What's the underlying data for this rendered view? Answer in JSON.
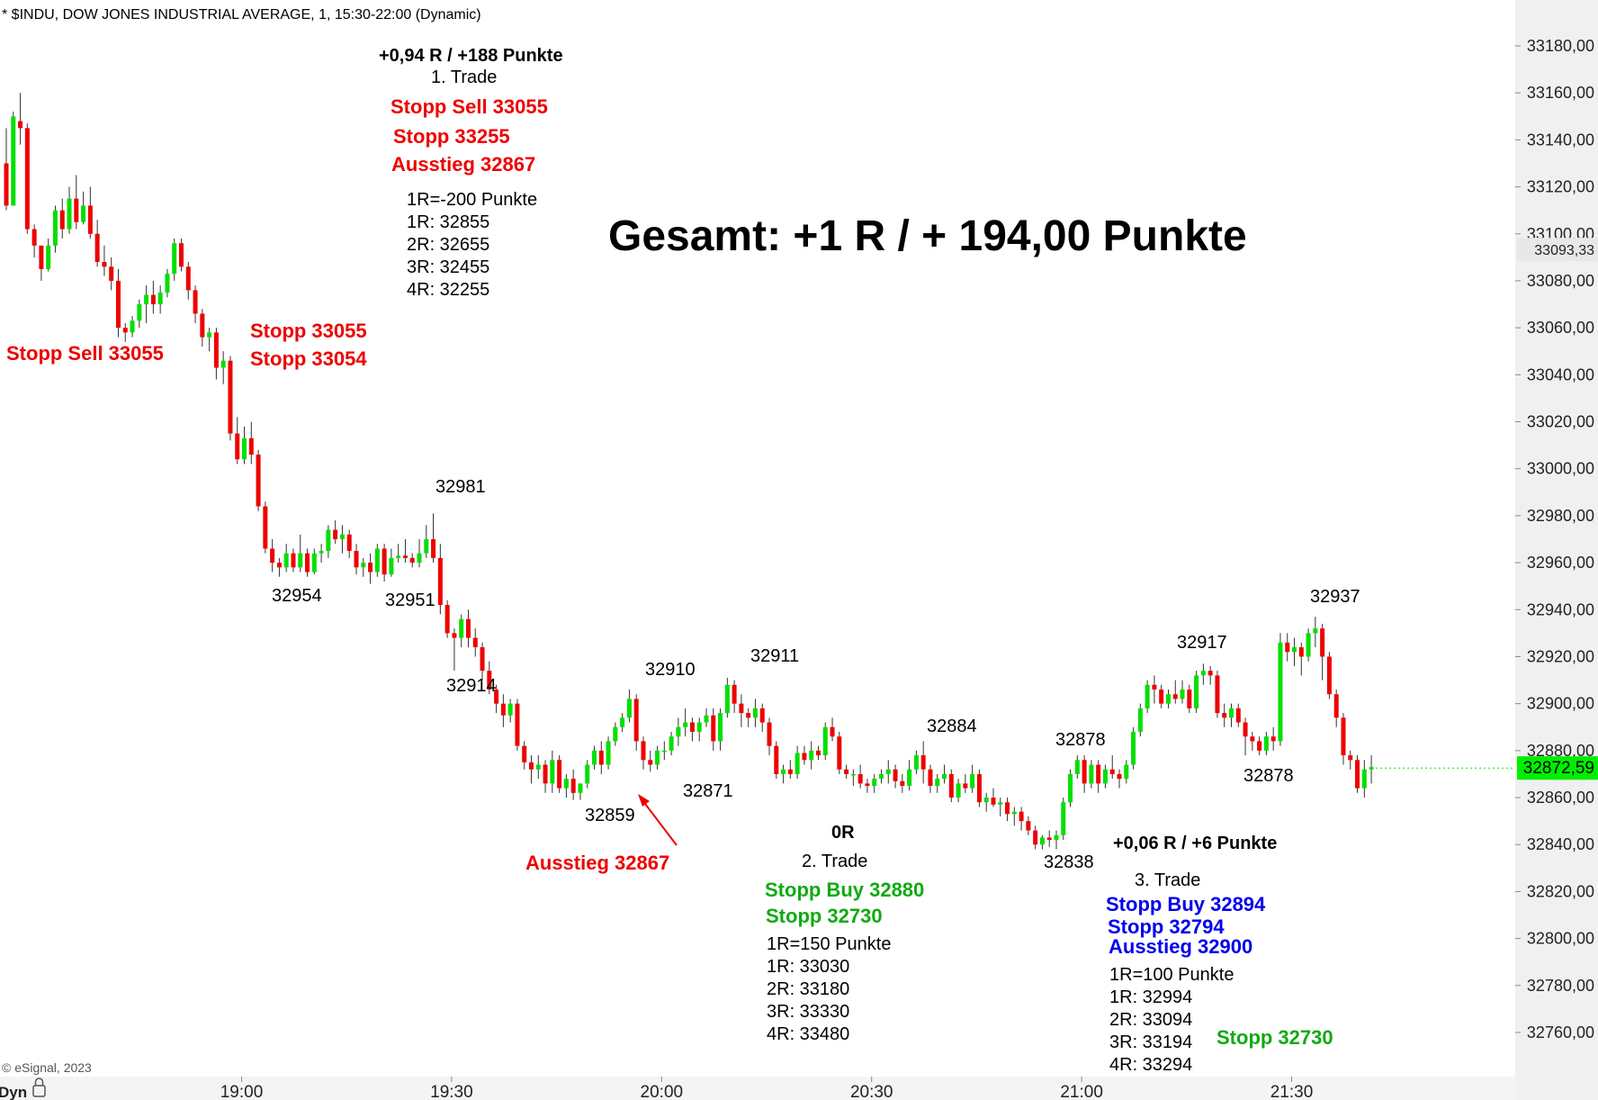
{
  "header": {
    "title": "* $INDU, DOW JONES INDUSTRIAL AVERAGE, 1, 15:30-22:00 (Dynamic)",
    "copyright": "© eSignal, 2023",
    "mode_label": "Dyn"
  },
  "chart_data": {
    "type": "candlestick",
    "symbol": "$INDU",
    "name": "DOW JONES INDUSTRIAL AVERAGE",
    "interval": "1",
    "session": "15:30-22:00",
    "ylim": [
      32745,
      33195
    ],
    "y_ticks": [
      "33180,00",
      "33160,00",
      "33140,00",
      "33120,00",
      "33100,00",
      "33080,00",
      "33060,00",
      "33040,00",
      "33020,00",
      "33000,00",
      "32980,00",
      "32960,00",
      "32940,00",
      "32920,00",
      "32900,00",
      "32880,00",
      "32860,00",
      "32840,00",
      "32820,00",
      "32800,00",
      "32780,00",
      "32760,00"
    ],
    "y_tick_values": [
      33180,
      33160,
      33140,
      33120,
      33100,
      33080,
      33060,
      33040,
      33020,
      33000,
      32980,
      32960,
      32940,
      32920,
      32900,
      32880,
      32860,
      32840,
      32820,
      32800,
      32780,
      32760
    ],
    "x_ticks": [
      "19:00",
      "19:30",
      "20:00",
      "20:30",
      "21:00",
      "21:30"
    ],
    "x_tick_minutes": [
      1140,
      1170,
      1200,
      1230,
      1260,
      1290
    ],
    "x_start_minute": 1106,
    "price_markers": [
      {
        "label": "33093,33",
        "value": 33093.33,
        "color": "#e8e8e8",
        "text_color": "#222222"
      },
      {
        "label": "32872,59",
        "value": 32872.59,
        "color": "#00ee00",
        "text_color": "#000000"
      }
    ],
    "candles": [
      [
        33130,
        33145,
        33110,
        33112
      ],
      [
        33112,
        33152,
        33112,
        33150
      ],
      [
        33148,
        33160,
        33138,
        33145
      ],
      [
        33145,
        33147,
        33100,
        33102
      ],
      [
        33102,
        33104,
        33090,
        33095
      ],
      [
        33095,
        33095,
        33080,
        33085
      ],
      [
        33085,
        33098,
        33084,
        33095
      ],
      [
        33095,
        33112,
        33092,
        33110
      ],
      [
        33110,
        33115,
        33098,
        33102
      ],
      [
        33102,
        33120,
        33100,
        33115
      ],
      [
        33115,
        33125,
        33102,
        33105
      ],
      [
        33105,
        33118,
        33104,
        33112
      ],
      [
        33112,
        33120,
        33098,
        33100
      ],
      [
        33100,
        33106,
        33086,
        33088
      ],
      [
        33088,
        33095,
        33082,
        33086
      ],
      [
        33086,
        33090,
        33076,
        33080
      ],
      [
        33080,
        33085,
        33056,
        33060
      ],
      [
        33060,
        33062,
        33054,
        33058
      ],
      [
        33058,
        33065,
        33056,
        33063
      ],
      [
        33063,
        33072,
        33060,
        33070
      ],
      [
        33070,
        33078,
        33062,
        33074
      ],
      [
        33074,
        33080,
        33066,
        33070
      ],
      [
        33070,
        33078,
        33066,
        33075
      ],
      [
        33075,
        33085,
        33073,
        33083
      ],
      [
        33083,
        33098,
        33080,
        33096
      ],
      [
        33096,
        33098,
        33084,
        33086
      ],
      [
        33086,
        33088,
        33072,
        33076
      ],
      [
        33076,
        33078,
        33062,
        33066
      ],
      [
        33066,
        33068,
        33052,
        33056
      ],
      [
        33056,
        33060,
        33050,
        33058
      ],
      [
        33058,
        33060,
        33038,
        33043
      ],
      [
        33043,
        33050,
        33036,
        33046
      ],
      [
        33046,
        33048,
        33012,
        33015
      ],
      [
        33015,
        33022,
        33002,
        33004
      ],
      [
        33004,
        33018,
        33002,
        33013
      ],
      [
        33013,
        33020,
        33002,
        33006
      ],
      [
        33006,
        33008,
        32982,
        32984
      ],
      [
        32984,
        32986,
        32964,
        32966
      ],
      [
        32966,
        32970,
        32956,
        32960
      ],
      [
        32960,
        32962,
        32954,
        32958
      ],
      [
        32958,
        32968,
        32956,
        32964
      ],
      [
        32964,
        32966,
        32956,
        32958
      ],
      [
        32958,
        32972,
        32956,
        32964
      ],
      [
        32964,
        32966,
        32954,
        32956
      ],
      [
        32956,
        32966,
        32955,
        32964
      ],
      [
        32964,
        32968,
        32960,
        32965
      ],
      [
        32965,
        32976,
        32962,
        32974
      ],
      [
        32974,
        32978,
        32968,
        32970
      ],
      [
        32970,
        32976,
        32964,
        32972
      ],
      [
        32972,
        32974,
        32962,
        32965
      ],
      [
        32965,
        32968,
        32955,
        32958
      ],
      [
        32958,
        32962,
        32954,
        32960
      ],
      [
        32960,
        32964,
        32951,
        32956
      ],
      [
        32956,
        32968,
        32954,
        32966
      ],
      [
        32966,
        32968,
        32952,
        32955
      ],
      [
        32955,
        32966,
        32954,
        32962
      ],
      [
        32962,
        32968,
        32960,
        32963
      ],
      [
        32963,
        32970,
        32960,
        32962
      ],
      [
        32962,
        32964,
        32958,
        32960
      ],
      [
        32960,
        32970,
        32958,
        32964
      ],
      [
        32964,
        32976,
        32962,
        32970
      ],
      [
        32970,
        32981,
        32960,
        32962
      ],
      [
        32962,
        32968,
        32938,
        32942
      ],
      [
        32942,
        32944,
        32928,
        32930
      ],
      [
        32930,
        32932,
        32914,
        32928
      ],
      [
        32928,
        32938,
        32924,
        32936
      ],
      [
        32936,
        32940,
        32924,
        32928
      ],
      [
        32928,
        32932,
        32920,
        32924
      ],
      [
        32924,
        32926,
        32910,
        32914
      ],
      [
        32914,
        32918,
        32904,
        32906
      ],
      [
        32906,
        32908,
        32896,
        32900
      ],
      [
        32900,
        32904,
        32890,
        32895
      ],
      [
        32895,
        32902,
        32892,
        32900
      ],
      [
        32900,
        32902,
        32880,
        32882
      ],
      [
        32882,
        32884,
        32872,
        32875
      ],
      [
        32875,
        32878,
        32866,
        32872
      ],
      [
        32872,
        32878,
        32868,
        32874
      ],
      [
        32874,
        32876,
        32862,
        32866
      ],
      [
        32866,
        32880,
        32862,
        32876
      ],
      [
        32876,
        32878,
        32862,
        32864
      ],
      [
        32864,
        32870,
        32860,
        32868
      ],
      [
        32868,
        32872,
        32859,
        32862
      ],
      [
        32862,
        32866,
        32859,
        32866
      ],
      [
        32866,
        32876,
        32864,
        32874
      ],
      [
        32874,
        32882,
        32872,
        32880
      ],
      [
        32880,
        32884,
        32870,
        32874
      ],
      [
        32874,
        32886,
        32872,
        32884
      ],
      [
        32884,
        32892,
        32882,
        32890
      ],
      [
        32890,
        32896,
        32888,
        32894
      ],
      [
        32894,
        32906,
        32892,
        32902
      ],
      [
        32902,
        32904,
        32880,
        32884
      ],
      [
        32884,
        32886,
        32872,
        32876
      ],
      [
        32876,
        32880,
        32871,
        32874
      ],
      [
        32874,
        32882,
        32872,
        32880
      ],
      [
        32880,
        32884,
        32876,
        32880
      ],
      [
        32880,
        32888,
        32878,
        32886
      ],
      [
        32886,
        32894,
        32882,
        32890
      ],
      [
        32890,
        32898,
        32886,
        32892
      ],
      [
        32892,
        32894,
        32884,
        32888
      ],
      [
        32888,
        32894,
        32884,
        32892
      ],
      [
        32892,
        32898,
        32890,
        32895
      ],
      [
        32895,
        32898,
        32880,
        32884
      ],
      [
        32884,
        32898,
        32880,
        32896
      ],
      [
        32896,
        32911,
        32894,
        32908
      ],
      [
        32908,
        32910,
        32896,
        32900
      ],
      [
        32900,
        32904,
        32890,
        32896
      ],
      [
        32896,
        32898,
        32890,
        32894
      ],
      [
        32894,
        32902,
        32890,
        32898
      ],
      [
        32898,
        32900,
        32888,
        32892
      ],
      [
        32892,
        32894,
        32878,
        32882
      ],
      [
        32882,
        32884,
        32868,
        32870
      ],
      [
        32870,
        32874,
        32866,
        32872
      ],
      [
        32872,
        32876,
        32868,
        32870
      ],
      [
        32870,
        32882,
        32868,
        32879
      ],
      [
        32879,
        32882,
        32874,
        32876
      ],
      [
        32876,
        32884,
        32872,
        32880
      ],
      [
        32880,
        32882,
        32876,
        32878
      ],
      [
        32878,
        32892,
        32876,
        32890
      ],
      [
        32890,
        32894,
        32884,
        32886
      ],
      [
        32886,
        32888,
        32870,
        32872
      ],
      [
        32872,
        32874,
        32868,
        32870
      ],
      [
        32870,
        32872,
        32865,
        32870
      ],
      [
        32870,
        32874,
        32864,
        32866
      ],
      [
        32866,
        32868,
        32862,
        32865
      ],
      [
        32865,
        32870,
        32862,
        32868
      ],
      [
        32868,
        32872,
        32866,
        32870
      ],
      [
        32870,
        32876,
        32866,
        32872
      ],
      [
        32872,
        32874,
        32864,
        32867
      ],
      [
        32867,
        32870,
        32862,
        32865
      ],
      [
        32865,
        32876,
        32863,
        32872
      ],
      [
        32872,
        32880,
        32870,
        32878
      ],
      [
        32878,
        32884,
        32866,
        32872
      ],
      [
        32872,
        32874,
        32862,
        32865
      ],
      [
        32865,
        32870,
        32862,
        32868
      ],
      [
        32868,
        32874,
        32866,
        32870
      ],
      [
        32870,
        32872,
        32858,
        32860
      ],
      [
        32860,
        32868,
        32858,
        32866
      ],
      [
        32866,
        32870,
        32862,
        32864
      ],
      [
        32864,
        32874,
        32862,
        32870
      ],
      [
        32870,
        32872,
        32856,
        32858
      ],
      [
        32858,
        32862,
        32854,
        32860
      ],
      [
        32860,
        32864,
        32856,
        32857
      ],
      [
        32857,
        32860,
        32852,
        32858
      ],
      [
        32858,
        32860,
        32850,
        32853
      ],
      [
        32853,
        32856,
        32848,
        32854
      ],
      [
        32854,
        32856,
        32846,
        32850
      ],
      [
        32850,
        32852,
        32844,
        32846
      ],
      [
        32846,
        32848,
        32838,
        32840
      ],
      [
        32840,
        32844,
        32838,
        32843
      ],
      [
        32843,
        32846,
        32839,
        32842
      ],
      [
        32842,
        32846,
        32838,
        32844
      ],
      [
        32844,
        32860,
        32842,
        32858
      ],
      [
        32858,
        32872,
        32856,
        32870
      ],
      [
        32870,
        32878,
        32868,
        32876
      ],
      [
        32876,
        32878,
        32862,
        32866
      ],
      [
        32866,
        32876,
        32864,
        32874
      ],
      [
        32874,
        32876,
        32862,
        32866
      ],
      [
        32866,
        32874,
        32864,
        32872
      ],
      [
        32872,
        32878,
        32868,
        32870
      ],
      [
        32870,
        32872,
        32864,
        32868
      ],
      [
        32868,
        32876,
        32866,
        32874
      ],
      [
        32874,
        32890,
        32872,
        32888
      ],
      [
        32888,
        32900,
        32886,
        32898
      ],
      [
        32898,
        32910,
        32896,
        32908
      ],
      [
        32908,
        32912,
        32900,
        32906
      ],
      [
        32906,
        32908,
        32898,
        32900
      ],
      [
        32900,
        32906,
        32898,
        32904
      ],
      [
        32904,
        32910,
        32900,
        32902
      ],
      [
        32902,
        32910,
        32900,
        32906
      ],
      [
        32906,
        32908,
        32896,
        32898
      ],
      [
        32898,
        32914,
        32896,
        32912
      ],
      [
        32912,
        32917,
        32908,
        32914
      ],
      [
        32914,
        32916,
        32908,
        32912
      ],
      [
        32912,
        32914,
        32894,
        32896
      ],
      [
        32896,
        32900,
        32890,
        32894
      ],
      [
        32894,
        32900,
        32890,
        32898
      ],
      [
        32898,
        32900,
        32890,
        32892
      ],
      [
        32892,
        32894,
        32878,
        32886
      ],
      [
        32886,
        32888,
        32880,
        32884
      ],
      [
        32884,
        32886,
        32878,
        32880
      ],
      [
        32880,
        32888,
        32878,
        32886
      ],
      [
        32886,
        32890,
        32880,
        32884
      ],
      [
        32884,
        32930,
        32882,
        32926
      ],
      [
        32926,
        32930,
        32918,
        32922
      ],
      [
        32922,
        32928,
        32916,
        32924
      ],
      [
        32924,
        32926,
        32912,
        32920
      ],
      [
        32920,
        32932,
        32918,
        32930
      ],
      [
        32930,
        32937,
        32924,
        32932
      ],
      [
        32932,
        32934,
        32910,
        32920
      ],
      [
        32920,
        32922,
        32902,
        32904
      ],
      [
        32904,
        32906,
        32890,
        32894
      ],
      [
        32894,
        32896,
        32874,
        32878
      ],
      [
        32878,
        32880,
        32872,
        32876
      ],
      [
        32876,
        32878,
        32862,
        32864
      ],
      [
        32864,
        32876,
        32860,
        32872
      ],
      [
        32872,
        32878,
        32866,
        32873
      ]
    ]
  },
  "annotations": {
    "trade1_result": "+0,94 R / +188 Punkte",
    "trade1_label": "1. Trade",
    "trade1_stopp_sell": "Stopp Sell 33055",
    "trade1_stopp": "Stopp 33255",
    "trade1_ausstieg": "Ausstieg 32867",
    "trade1_r_lines": [
      "1R=-200 Punkte",
      "1R: 32855",
      "2R: 32655",
      "3R: 32455",
      "4R: 32255"
    ],
    "left_stopp_sell": "Stopp Sell 33055",
    "mid_stopp_a": "Stopp 33055",
    "mid_stopp_b": "Stopp 33054",
    "gesamt": "Gesamt: +1 R / + 194,00 Punkte",
    "price_labels": [
      "32981",
      "32954",
      "32951",
      "32914",
      "32859",
      "32910",
      "32871",
      "32911",
      "32884",
      "32878",
      "32838",
      "32917",
      "32878",
      "32937"
    ],
    "ausstieg_bottom": "Ausstieg 32867",
    "trade2_result": "0R",
    "trade2_label": "2. Trade",
    "trade2_stopp_buy": "Stopp Buy 32880",
    "trade2_stopp": "Stopp 32730",
    "trade2_r_lines": [
      "1R=150 Punkte",
      "1R: 33030",
      "2R: 33180",
      "3R: 33330",
      "4R: 33480"
    ],
    "trade3_result": "+0,06 R / +6 Punkte",
    "trade3_label": "3. Trade",
    "trade3_stopp_buy": "Stopp Buy 32894",
    "trade3_stopp": "Stopp 32794",
    "trade3_ausstieg": "Ausstieg 32900",
    "trade3_r_lines": [
      "1R=100 Punkte",
      "1R: 32994",
      "2R: 33094",
      "3R: 33194",
      "4R: 33294"
    ],
    "trade3_stopp_green": "Stopp 32730"
  },
  "colors": {
    "up": "#00e000",
    "down": "#ee0000",
    "wick": "#333333",
    "red_text": "#ee0000",
    "green_text": "#11aa11",
    "blue_text": "#0000ee",
    "axis_bg": "#f0f0f0"
  }
}
